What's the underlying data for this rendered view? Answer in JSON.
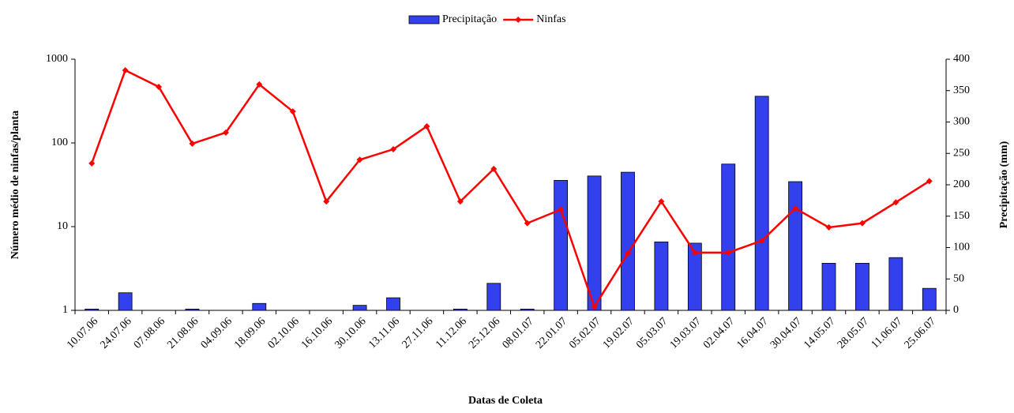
{
  "chart_data": {
    "type": "combo",
    "legend_position": "top",
    "x_label": "Datas de Coleta",
    "y_label": "Número médio de ninfas/planta",
    "y2_label": "Precipitação (mm)",
    "categories": [
      "10.07.06",
      "24.07.06",
      "07.08.06",
      "21.08.06",
      "04.09.06",
      "18.09.06",
      "02.10.06",
      "16.10.06",
      "30.10.06",
      "13.11.06",
      "27.11.06",
      "11.12.06",
      "25.12.06",
      "08.01.07",
      "22.01.07",
      "05.02.07",
      "19.02.07",
      "05.03.07",
      "19.03.07",
      "02.04.07",
      "16.04.07",
      "30.04.07",
      "14.05.07",
      "28.05.07",
      "11.06.07",
      "25.06.07"
    ],
    "series": [
      {
        "name": "Precipitação",
        "type": "bar",
        "axis": "y2",
        "color": "#3340ee",
        "values": [
          2,
          28,
          0,
          2,
          0,
          11,
          0,
          0,
          8,
          20,
          0,
          2,
          43,
          2,
          207,
          214,
          220,
          109,
          107,
          233,
          341,
          205,
          75,
          75,
          84,
          35
        ]
      },
      {
        "name": "Ninfas",
        "type": "line",
        "color": "#ff0000",
        "values": [
          57,
          738,
          468,
          98,
          133,
          500,
          238,
          20,
          63,
          84,
          158,
          20,
          49,
          11,
          16,
          1.1,
          4.8,
          20,
          4.9,
          4.9,
          6.8,
          16.5,
          9.8,
          11,
          19.5,
          35
        ]
      }
    ],
    "yscale": "log",
    "ylim": [
      1,
      1000
    ],
    "yticks": [
      1,
      10,
      100,
      1000
    ],
    "y2lim": [
      0,
      400
    ],
    "y2ticks": [
      0,
      50,
      100,
      150,
      200,
      250,
      300,
      350,
      400
    ]
  }
}
